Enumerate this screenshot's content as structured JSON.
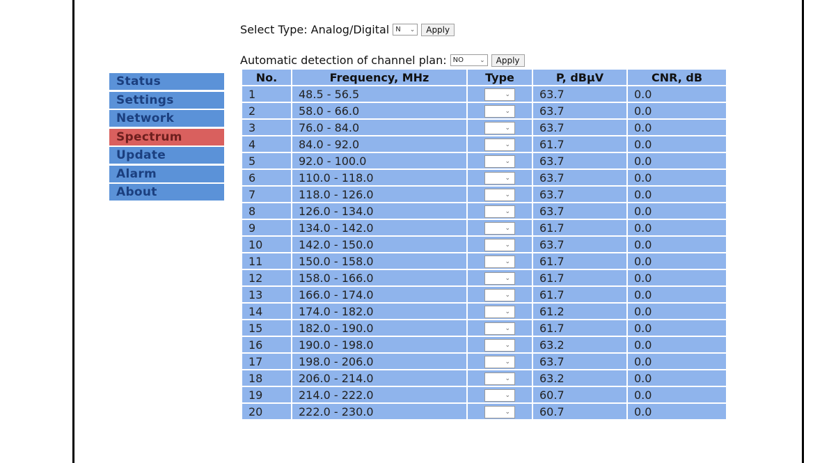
{
  "sidebar": {
    "items": [
      {
        "label": "Status"
      },
      {
        "label": "Settings"
      },
      {
        "label": "Network"
      },
      {
        "label": "Spectrum"
      },
      {
        "label": "Update"
      },
      {
        "label": "Alarm"
      },
      {
        "label": "About"
      }
    ],
    "active": "Spectrum"
  },
  "controls": {
    "type_label": "Select Type: Analog/Digital",
    "type_value": "N",
    "plan_label": "Automatic detection of channel plan:",
    "plan_value": "NO",
    "apply_label": "Apply"
  },
  "icons": {
    "dropdown": "chevron-down-icon"
  },
  "colors": {
    "nav": "#5b92d8",
    "nav_active": "#d9605e",
    "table_cell": "#8fb4ec"
  },
  "table": {
    "headers": [
      "No.",
      "Frequency, MHz",
      "Type",
      "P, dBµV",
      "CNR, dB"
    ],
    "rows": [
      {
        "no": "1",
        "freq": "48.5 - 56.5",
        "type": "",
        "p": "63.7",
        "cnr": "0.0"
      },
      {
        "no": "2",
        "freq": "58.0 - 66.0",
        "type": "",
        "p": "63.7",
        "cnr": "0.0"
      },
      {
        "no": "3",
        "freq": "76.0 - 84.0",
        "type": "",
        "p": "63.7",
        "cnr": "0.0"
      },
      {
        "no": "4",
        "freq": "84.0 - 92.0",
        "type": "",
        "p": "61.7",
        "cnr": "0.0"
      },
      {
        "no": "5",
        "freq": "92.0 - 100.0",
        "type": "",
        "p": "63.7",
        "cnr": "0.0"
      },
      {
        "no": "6",
        "freq": "110.0 - 118.0",
        "type": "",
        "p": "63.7",
        "cnr": "0.0"
      },
      {
        "no": "7",
        "freq": "118.0 - 126.0",
        "type": "",
        "p": "63.7",
        "cnr": "0.0"
      },
      {
        "no": "8",
        "freq": "126.0 - 134.0",
        "type": "",
        "p": "63.7",
        "cnr": "0.0"
      },
      {
        "no": "9",
        "freq": "134.0 - 142.0",
        "type": "",
        "p": "61.7",
        "cnr": "0.0"
      },
      {
        "no": "10",
        "freq": "142.0 - 150.0",
        "type": "",
        "p": "63.7",
        "cnr": "0.0"
      },
      {
        "no": "11",
        "freq": "150.0 - 158.0",
        "type": "",
        "p": "61.7",
        "cnr": "0.0"
      },
      {
        "no": "12",
        "freq": "158.0 - 166.0",
        "type": "",
        "p": "61.7",
        "cnr": "0.0"
      },
      {
        "no": "13",
        "freq": "166.0 - 174.0",
        "type": "",
        "p": "61.7",
        "cnr": "0.0"
      },
      {
        "no": "14",
        "freq": "174.0 - 182.0",
        "type": "",
        "p": "61.2",
        "cnr": "0.0"
      },
      {
        "no": "15",
        "freq": "182.0 - 190.0",
        "type": "",
        "p": "61.7",
        "cnr": "0.0"
      },
      {
        "no": "16",
        "freq": "190.0 - 198.0",
        "type": "",
        "p": "63.2",
        "cnr": "0.0"
      },
      {
        "no": "17",
        "freq": "198.0 - 206.0",
        "type": "",
        "p": "63.7",
        "cnr": "0.0"
      },
      {
        "no": "18",
        "freq": "206.0 - 214.0",
        "type": "",
        "p": "63.2",
        "cnr": "0.0"
      },
      {
        "no": "19",
        "freq": "214.0 - 222.0",
        "type": "",
        "p": "60.7",
        "cnr": "0.0"
      },
      {
        "no": "20",
        "freq": "222.0 - 230.0",
        "type": "",
        "p": "60.7",
        "cnr": "0.0"
      }
    ]
  }
}
